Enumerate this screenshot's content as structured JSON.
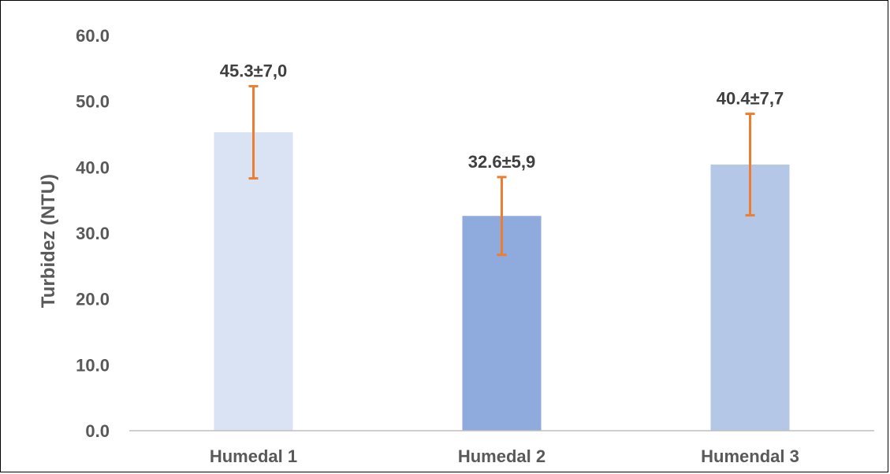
{
  "chart_data": {
    "type": "bar",
    "title": "",
    "xlabel": "",
    "ylabel": "Turbidez (NTU)",
    "ylim": [
      0,
      60
    ],
    "yticks": [
      "0.0",
      "10.0",
      "20.0",
      "30.0",
      "40.0",
      "50.0",
      "60.0"
    ],
    "ytick_values": [
      0,
      10,
      20,
      30,
      40,
      50,
      60
    ],
    "grid": false,
    "legend": "none",
    "categories": [
      "Humedal 1",
      "Humedal 2",
      "Humendal 3"
    ],
    "values": [
      45.3,
      32.6,
      40.4
    ],
    "errors": [
      7.0,
      5.9,
      7.7
    ],
    "data_labels": [
      "45.3±7,0",
      "32.6±5,9",
      "40.4±7,7"
    ],
    "bar_colors": [
      "#dae3f3",
      "#8faadc",
      "#b4c7e7"
    ],
    "error_bar_color": "#ed7d31",
    "axis_color": "#bfbfbf",
    "text_color": "#595959",
    "label_color": "#404040"
  }
}
